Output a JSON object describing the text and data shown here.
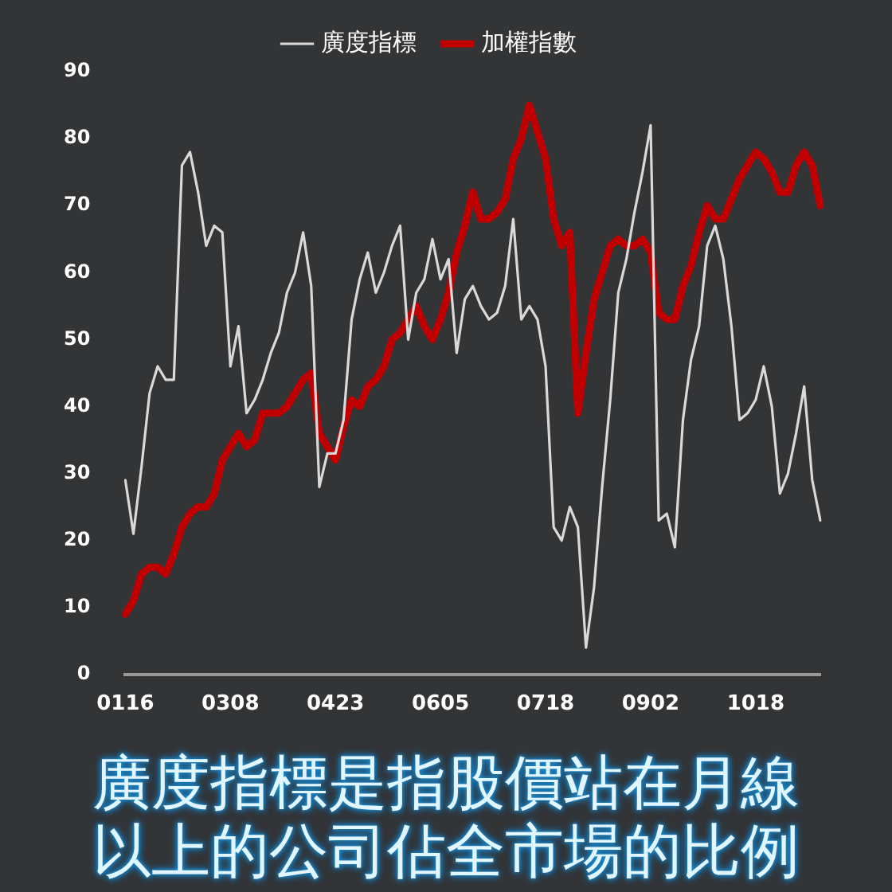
{
  "chart_data": {
    "type": "line",
    "categories": [
      "0116",
      null,
      null,
      null,
      null,
      null,
      null,
      null,
      null,
      null,
      null,
      null,
      null,
      "0308",
      null,
      null,
      null,
      null,
      null,
      null,
      null,
      null,
      null,
      null,
      null,
      null,
      "0423",
      null,
      null,
      null,
      null,
      null,
      null,
      null,
      null,
      null,
      null,
      null,
      null,
      "0605",
      null,
      null,
      null,
      null,
      null,
      null,
      null,
      null,
      null,
      null,
      null,
      null,
      "0718",
      null,
      null,
      null,
      null,
      null,
      null,
      null,
      null,
      null,
      null,
      null,
      null,
      "0902",
      null,
      null,
      null,
      null,
      null,
      null,
      null,
      null,
      null,
      null,
      null,
      null,
      "1018",
      null,
      null,
      null,
      null,
      null,
      null,
      null,
      null
    ],
    "series": [
      {
        "name": "廣度指標",
        "color": "#d9d9d9",
        "values": [
          29,
          21,
          31,
          42,
          46,
          44,
          44,
          76,
          78,
          72,
          64,
          67,
          66,
          46,
          52,
          39,
          41,
          44,
          48,
          51,
          57,
          60,
          66,
          58,
          28,
          33,
          33,
          38,
          53,
          59,
          63,
          57,
          60,
          64,
          67,
          50,
          57,
          59,
          65,
          59,
          62,
          48,
          56,
          58,
          55,
          53,
          54,
          58,
          68,
          53,
          55,
          53,
          46,
          22,
          20,
          25,
          22,
          4,
          13,
          28,
          41,
          57,
          62,
          69,
          75,
          82,
          23,
          24,
          19,
          38,
          47,
          52,
          64,
          67,
          62,
          52,
          38,
          39,
          41,
          46,
          40,
          27,
          30,
          36,
          43,
          29,
          23
        ]
      },
      {
        "name": "加權指數",
        "color": "#c00000",
        "values": [
          9,
          11,
          15,
          16,
          16,
          15,
          18,
          22,
          24,
          25,
          25,
          27,
          32,
          34,
          36,
          34,
          35,
          39,
          39,
          39,
          40,
          42,
          44,
          45,
          36,
          34,
          32,
          37,
          41,
          40,
          43,
          44,
          46,
          50,
          51,
          53,
          55,
          52,
          50,
          53,
          57,
          63,
          67,
          72,
          68,
          68,
          69,
          71,
          77,
          80,
          85,
          81,
          77,
          68,
          64,
          66,
          39,
          48,
          56,
          60,
          64,
          65,
          64,
          64,
          65,
          63,
          54,
          53,
          53,
          58,
          61,
          66,
          70,
          68,
          68,
          71,
          74,
          76,
          78,
          77,
          75,
          72,
          72,
          76,
          78,
          76,
          70
        ]
      }
    ],
    "ylim": [
      0,
      90
    ],
    "yticks": [
      0,
      10,
      20,
      30,
      40,
      50,
      60,
      70,
      80,
      90
    ],
    "legend": "top",
    "annotations": [
      "廣度指標是指股價站在月線以上的公司佔全市場的比例"
    ]
  }
}
